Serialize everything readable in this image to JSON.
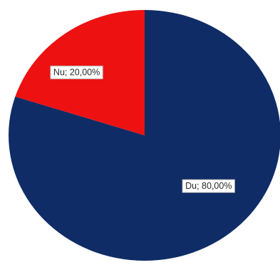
{
  "chart_data": {
    "type": "pie",
    "slices": [
      {
        "label": "Du",
        "value": 80.0,
        "display": "Du; 80,00%",
        "color": "#0f2c66"
      },
      {
        "label": "Nu",
        "value": 20.0,
        "display": "Nu; 20,00%",
        "color": "#ee1111"
      }
    ],
    "start_angle_deg": 0,
    "direction": "clockwise",
    "legend": "none",
    "data_labels": "on-slice"
  }
}
